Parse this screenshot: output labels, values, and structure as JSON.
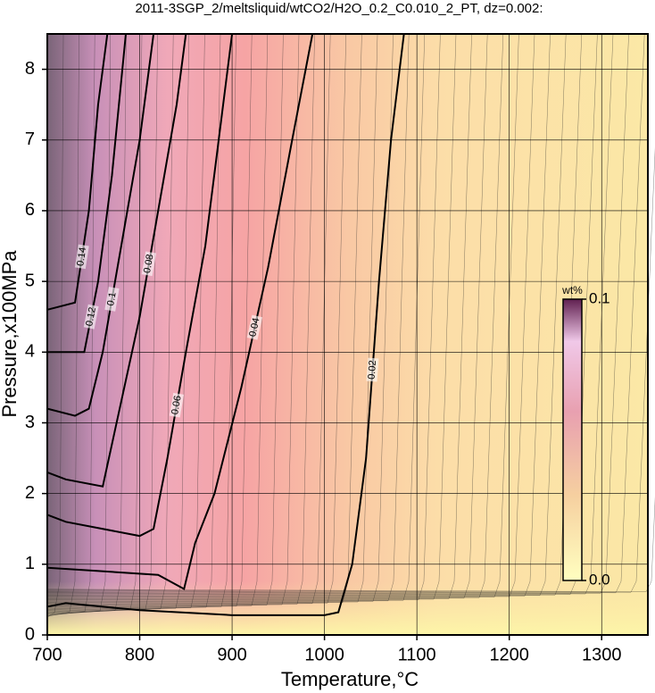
{
  "chart_data": {
    "type": "contour",
    "title": "2011-3SGP_2/meltsliquid/wtCO2/H2O_0.2_C0.010_2_PT, dz=0.002:",
    "x_label": "Temperature,°C",
    "y_label": "Pressure,x100MPa",
    "xlim": [
      700,
      1350
    ],
    "ylim": [
      0,
      8.5
    ],
    "xticks": [
      700,
      800,
      900,
      1000,
      1100,
      1200,
      1300
    ],
    "yticks": [
      0,
      1,
      2,
      3,
      4,
      5,
      6,
      7,
      8
    ],
    "grid": true,
    "colorbar": {
      "title": "wt%",
      "lim": [
        0,
        0.1
      ],
      "ticks": [
        {
          "value": 0,
          "label": "0.0"
        },
        0.1
      ]
    },
    "contours": [
      {
        "level": 0.02,
        "x": [
          700,
          720,
          800,
          900,
          1000,
          1015,
          1030,
          1045,
          1059,
          1072,
          1086
        ],
        "y": [
          0.4,
          0.45,
          0.35,
          0.28,
          0.28,
          0.32,
          1.0,
          2.5,
          5.0,
          7.0,
          8.5
        ]
      },
      {
        "level": 0.04,
        "x": [
          700,
          725,
          820,
          848,
          860,
          881,
          910,
          939,
          965,
          987
        ],
        "y": [
          0.95,
          0.93,
          0.85,
          0.65,
          1.3,
          2.0,
          3.5,
          5.2,
          7.0,
          8.5
        ]
      },
      {
        "level": 0.06,
        "x": [
          700,
          720,
          800,
          815,
          830,
          850,
          871,
          900
        ],
        "y": [
          1.7,
          1.6,
          1.4,
          1.5,
          2.5,
          4.0,
          5.5,
          8.5
        ]
      },
      {
        "level": 0.08,
        "x": [
          700,
          720,
          760,
          775,
          800,
          820,
          840,
          850
        ],
        "y": [
          2.3,
          2.2,
          2.1,
          3.0,
          4.5,
          6.0,
          7.5,
          8.5
        ]
      },
      {
        "level": 0.1,
        "x": [
          700,
          730,
          745,
          760,
          780,
          800,
          815
        ],
        "y": [
          3.2,
          3.1,
          3.2,
          4.0,
          5.5,
          7.0,
          8.5
        ]
      },
      {
        "level": 0.12,
        "x": [
          700,
          740,
          755,
          770,
          785
        ],
        "y": [
          4.0,
          4.0,
          5.0,
          6.5,
          8.5
        ]
      },
      {
        "level": 0.14,
        "x": [
          700,
          730,
          745,
          755,
          765
        ],
        "y": [
          4.6,
          4.7,
          6.0,
          7.5,
          8.5
        ]
      }
    ]
  }
}
